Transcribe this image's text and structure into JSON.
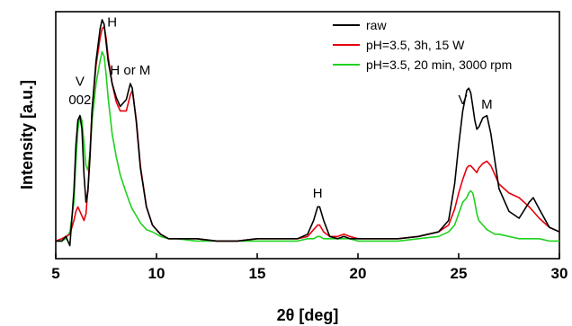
{
  "chart_data": {
    "type": "line",
    "title": "",
    "xlabel": "2θ [deg]",
    "ylabel": "Intensity [a.u.]",
    "xlim": [
      5,
      30
    ],
    "ylim": [
      0,
      1
    ],
    "x_ticks": [
      "5",
      "10",
      "15",
      "20",
      "25",
      "30"
    ],
    "y_ticks": [],
    "legend_position": "top-right",
    "grid": false,
    "series": [
      {
        "name": "raw",
        "color": "#000000",
        "x": [
          5.0,
          5.3,
          5.5,
          5.7,
          5.9,
          6.0,
          6.1,
          6.2,
          6.3,
          6.4,
          6.5,
          6.6,
          6.7,
          6.8,
          7.0,
          7.2,
          7.3,
          7.4,
          7.5,
          7.6,
          7.8,
          8.0,
          8.2,
          8.5,
          8.7,
          8.8,
          9.0,
          9.2,
          9.5,
          9.8,
          10.2,
          10.6,
          11.0,
          12.0,
          13.0,
          14.0,
          15.0,
          16.0,
          17.0,
          17.5,
          17.8,
          18.0,
          18.1,
          18.3,
          18.6,
          19.0,
          19.3,
          19.6,
          20.0,
          21.0,
          22.0,
          23.0,
          24.0,
          24.5,
          24.8,
          25.0,
          25.2,
          25.4,
          25.5,
          25.6,
          25.7,
          25.8,
          25.9,
          26.0,
          26.2,
          26.4,
          26.6,
          26.8,
          27.0,
          27.5,
          28.0,
          28.5,
          28.7,
          29.0,
          29.5,
          30.0
        ],
        "values": [
          0.03,
          0.03,
          0.05,
          0.01,
          0.25,
          0.45,
          0.56,
          0.58,
          0.52,
          0.32,
          0.2,
          0.25,
          0.4,
          0.6,
          0.82,
          0.96,
          1.0,
          0.98,
          0.9,
          0.82,
          0.72,
          0.66,
          0.62,
          0.65,
          0.72,
          0.7,
          0.55,
          0.35,
          0.18,
          0.1,
          0.06,
          0.04,
          0.04,
          0.04,
          0.03,
          0.03,
          0.04,
          0.04,
          0.04,
          0.06,
          0.12,
          0.18,
          0.18,
          0.12,
          0.05,
          0.04,
          0.05,
          0.04,
          0.04,
          0.04,
          0.04,
          0.05,
          0.07,
          0.12,
          0.28,
          0.45,
          0.6,
          0.69,
          0.7,
          0.68,
          0.62,
          0.56,
          0.52,
          0.53,
          0.57,
          0.58,
          0.5,
          0.38,
          0.26,
          0.16,
          0.13,
          0.2,
          0.22,
          0.17,
          0.09,
          0.07
        ]
      },
      {
        "name": "pH=3.5, 3h, 15 W",
        "color": "#e8000b",
        "x": [
          5.0,
          5.3,
          5.5,
          5.7,
          5.9,
          6.0,
          6.1,
          6.2,
          6.3,
          6.4,
          6.5,
          6.6,
          6.7,
          6.8,
          7.0,
          7.2,
          7.3,
          7.4,
          7.5,
          7.6,
          7.8,
          8.0,
          8.2,
          8.5,
          8.7,
          8.8,
          9.0,
          9.2,
          9.5,
          9.8,
          10.2,
          10.6,
          11.0,
          12.0,
          13.0,
          14.0,
          15.0,
          16.0,
          17.0,
          17.5,
          17.8,
          18.0,
          18.1,
          18.3,
          18.6,
          19.0,
          19.3,
          19.6,
          20.0,
          21.0,
          22.0,
          23.0,
          24.0,
          24.5,
          24.8,
          25.0,
          25.2,
          25.4,
          25.5,
          25.6,
          25.7,
          25.8,
          25.9,
          26.0,
          26.2,
          26.4,
          26.6,
          26.8,
          27.0,
          27.5,
          28.0,
          28.5,
          28.7,
          29.0,
          29.5,
          30.0
        ],
        "values": [
          0.03,
          0.04,
          0.05,
          0.06,
          0.12,
          0.16,
          0.18,
          0.16,
          0.14,
          0.12,
          0.15,
          0.26,
          0.42,
          0.6,
          0.8,
          0.92,
          0.96,
          0.97,
          0.92,
          0.84,
          0.72,
          0.64,
          0.6,
          0.6,
          0.67,
          0.69,
          0.56,
          0.36,
          0.18,
          0.1,
          0.06,
          0.04,
          0.04,
          0.04,
          0.03,
          0.03,
          0.04,
          0.04,
          0.04,
          0.05,
          0.08,
          0.1,
          0.1,
          0.07,
          0.05,
          0.05,
          0.06,
          0.05,
          0.04,
          0.04,
          0.04,
          0.05,
          0.07,
          0.1,
          0.17,
          0.24,
          0.3,
          0.35,
          0.36,
          0.36,
          0.35,
          0.34,
          0.33,
          0.35,
          0.37,
          0.38,
          0.36,
          0.32,
          0.28,
          0.24,
          0.22,
          0.18,
          0.16,
          0.13,
          0.09,
          0.07
        ]
      },
      {
        "name": "pH=3.5, 20 min, 3000 rpm",
        "color": "#1fd11f",
        "x": [
          5.0,
          5.3,
          5.5,
          5.7,
          5.9,
          6.0,
          6.1,
          6.2,
          6.3,
          6.4,
          6.5,
          6.6,
          6.7,
          6.8,
          7.0,
          7.2,
          7.3,
          7.4,
          7.5,
          7.6,
          7.8,
          8.0,
          8.2,
          8.5,
          8.7,
          8.8,
          9.0,
          9.2,
          9.5,
          9.8,
          10.2,
          10.6,
          11.0,
          12.0,
          13.0,
          14.0,
          15.0,
          16.0,
          17.0,
          17.5,
          17.8,
          18.0,
          18.1,
          18.3,
          18.6,
          19.0,
          19.3,
          19.6,
          20.0,
          21.0,
          22.0,
          23.0,
          24.0,
          24.5,
          24.8,
          25.0,
          25.2,
          25.4,
          25.5,
          25.6,
          25.7,
          25.8,
          25.9,
          26.0,
          26.2,
          26.4,
          26.6,
          26.8,
          27.0,
          27.5,
          28.0,
          28.5,
          28.7,
          29.0,
          29.5,
          30.0
        ],
        "values": [
          0.03,
          0.03,
          0.04,
          0.07,
          0.2,
          0.38,
          0.52,
          0.58,
          0.56,
          0.46,
          0.36,
          0.34,
          0.42,
          0.55,
          0.72,
          0.82,
          0.86,
          0.84,
          0.76,
          0.66,
          0.5,
          0.4,
          0.32,
          0.24,
          0.19,
          0.17,
          0.14,
          0.11,
          0.08,
          0.07,
          0.05,
          0.04,
          0.04,
          0.03,
          0.03,
          0.03,
          0.03,
          0.03,
          0.03,
          0.04,
          0.04,
          0.05,
          0.05,
          0.04,
          0.04,
          0.04,
          0.04,
          0.04,
          0.03,
          0.03,
          0.03,
          0.04,
          0.05,
          0.07,
          0.1,
          0.15,
          0.2,
          0.22,
          0.24,
          0.25,
          0.24,
          0.2,
          0.15,
          0.12,
          0.1,
          0.08,
          0.07,
          0.06,
          0.06,
          0.05,
          0.04,
          0.04,
          0.04,
          0.04,
          0.03,
          0.03
        ]
      }
    ],
    "annotations": [
      {
        "text": "V",
        "x": 6.2,
        "y": 0.71
      },
      {
        "text": "002",
        "x": 6.2,
        "y": 0.63
      },
      {
        "text": "H",
        "x": 7.8,
        "y": 0.97
      },
      {
        "text": "H or M",
        "x": 8.7,
        "y": 0.76
      },
      {
        "text": "H",
        "x": 18.0,
        "y": 0.22
      },
      {
        "text": "V",
        "x": 25.2,
        "y": 0.63
      },
      {
        "text": "M",
        "x": 26.4,
        "y": 0.61
      }
    ]
  }
}
